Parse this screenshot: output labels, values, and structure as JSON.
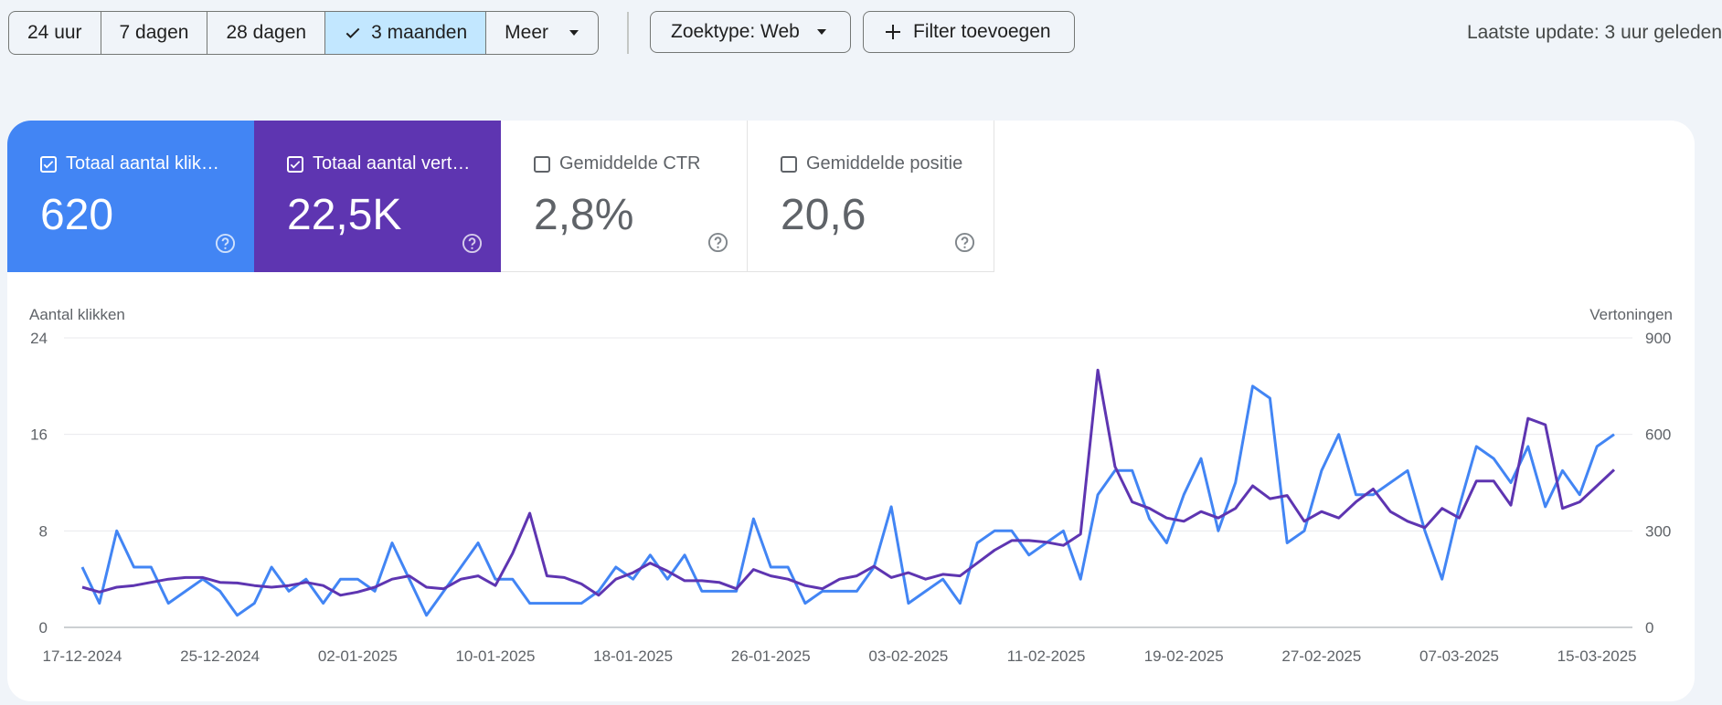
{
  "toolbar": {
    "ranges": [
      "24 uur",
      "7 dagen",
      "28 dagen",
      "3 maanden",
      "Meer"
    ],
    "active_range": "3 maanden",
    "search_type": "Zoektype: Web",
    "add_filter": "Filter toevoegen",
    "last_update": "Laatste update: 3 uur geleden"
  },
  "metrics": [
    {
      "title": "Totaal aantal klik…",
      "value": "620",
      "checked": true,
      "color": "#4285f4"
    },
    {
      "title": "Totaal aantal vert…",
      "value": "22,5K",
      "checked": true,
      "color": "#5e35b1"
    },
    {
      "title": "Gemiddelde CTR",
      "value": "2,8%",
      "checked": false
    },
    {
      "title": "Gemiddelde positie",
      "value": "20,6",
      "checked": false
    }
  ],
  "icons": {
    "check": "check-icon",
    "caret": "caret-down-icon",
    "plus": "plus-icon",
    "help": "help-circle-icon",
    "checkbox": "checkbox-icon"
  },
  "chart_data": {
    "type": "line",
    "ylabel_left": "Aantal klikken",
    "ylabel_right": "Vertoningen",
    "yticks_left": [
      "24",
      "16",
      "8",
      "0"
    ],
    "yticks_right": [
      "900",
      "600",
      "300",
      "0"
    ],
    "ylim_left": [
      0,
      24
    ],
    "ylim_right": [
      0,
      900
    ],
    "xtick_labels": [
      "17-12-2024",
      "25-12-2024",
      "02-01-2025",
      "10-01-2025",
      "18-01-2025",
      "26-01-2025",
      "03-02-2025",
      "11-02-2025",
      "19-02-2025",
      "27-02-2025",
      "07-03-2025",
      "15-03-2025"
    ],
    "grid": true,
    "legend": "none",
    "series": [
      {
        "axis": "left",
        "color": "#4285f4",
        "values": [
          5,
          2,
          8,
          5,
          5,
          2,
          3,
          4,
          3,
          1,
          2,
          5,
          3,
          4,
          2,
          4,
          4,
          3,
          7,
          4,
          1,
          3,
          5,
          7,
          4,
          4,
          2,
          2,
          2,
          2,
          3,
          5,
          4,
          6,
          4,
          6,
          3,
          3,
          3,
          9,
          5,
          5,
          2,
          3,
          3,
          3,
          5,
          10,
          2,
          3,
          4,
          2,
          7,
          8,
          8,
          6,
          7,
          8,
          4,
          11,
          13,
          13,
          9,
          7,
          11,
          14,
          8,
          12,
          20,
          19,
          7,
          8,
          13,
          16,
          11,
          11,
          12,
          13,
          8,
          4,
          10,
          15,
          14,
          12,
          15,
          10,
          13,
          11,
          15,
          16
        ]
      },
      {
        "axis": "right",
        "color": "#5e35b1",
        "values": [
          125,
          110,
          125,
          130,
          140,
          150,
          155,
          155,
          140,
          138,
          130,
          125,
          130,
          140,
          130,
          100,
          110,
          125,
          150,
          160,
          125,
          120,
          150,
          160,
          130,
          230,
          355,
          160,
          155,
          135,
          100,
          150,
          170,
          200,
          175,
          145,
          145,
          140,
          120,
          180,
          160,
          150,
          130,
          120,
          150,
          160,
          190,
          155,
          170,
          150,
          165,
          160,
          200,
          240,
          270,
          270,
          265,
          255,
          290,
          800,
          500,
          390,
          370,
          340,
          330,
          360,
          340,
          370,
          440,
          400,
          410,
          330,
          360,
          340,
          390,
          430,
          360,
          330,
          310,
          370,
          340,
          455,
          455,
          380,
          650,
          630,
          370,
          390,
          440,
          490
        ]
      }
    ]
  }
}
